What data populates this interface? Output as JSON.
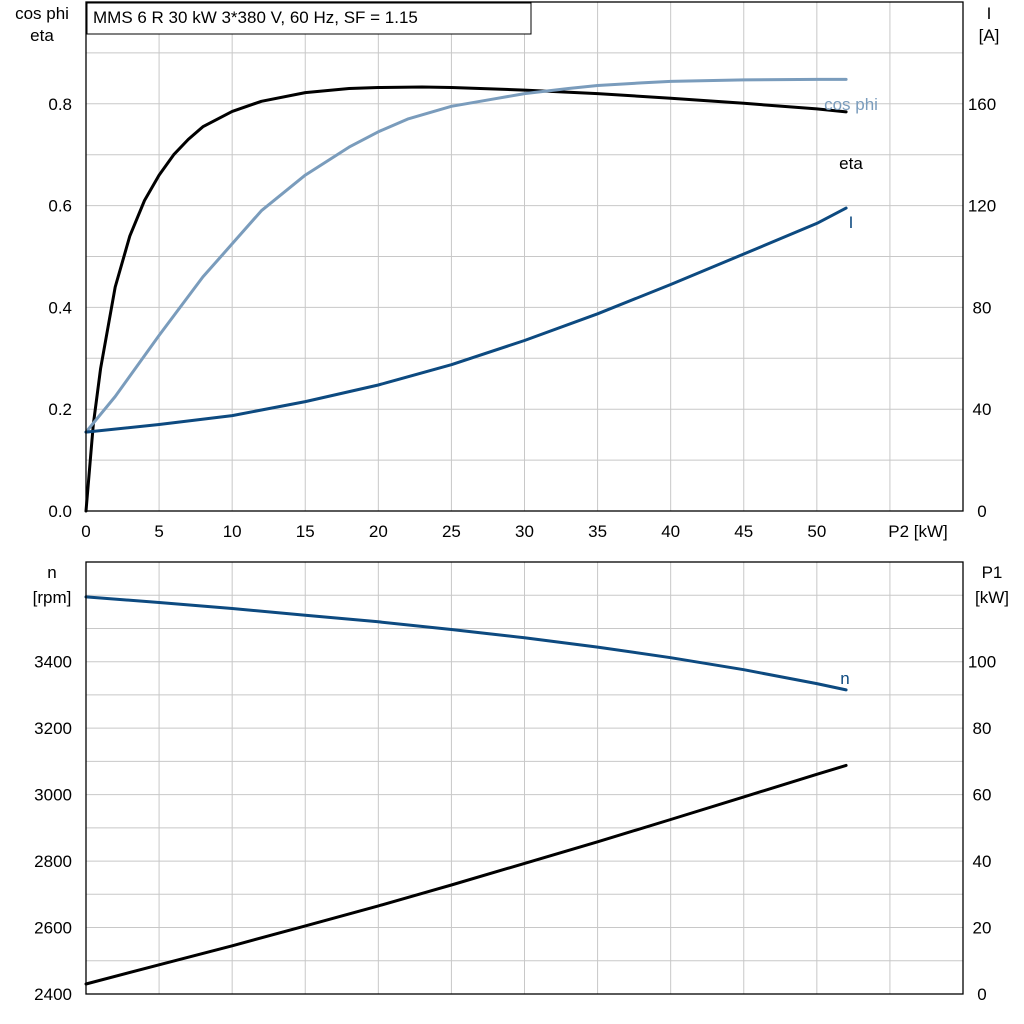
{
  "colors": {
    "eta": "#000000",
    "cosphi": "#7a9cbc",
    "current": "#0d4a80",
    "speed": "#0d4a80",
    "p1": "#000000",
    "grid": "#c8c8c8"
  },
  "title": "MMS 6 R   30 kW   3*380 V, 60 Hz, SF = 1.15",
  "chart_data": [
    {
      "type": "line",
      "x_axis": {
        "label": "P2 [kW]",
        "range": [
          0,
          60
        ],
        "ticks": [
          "0",
          "5",
          "10",
          "15",
          "20",
          "25",
          "30",
          "35",
          "40",
          "45",
          "50"
        ],
        "tick_values": [
          0,
          5,
          10,
          15,
          20,
          25,
          30,
          35,
          40,
          45,
          50
        ]
      },
      "y_left": {
        "label_line1": "cos phi",
        "label_line2": "eta",
        "range": [
          0,
          1.0
        ],
        "ticks": [
          "0.0",
          "0.2",
          "0.4",
          "0.6",
          "0.8"
        ],
        "tick_values": [
          0,
          0.2,
          0.4,
          0.6,
          0.8
        ]
      },
      "y_right": {
        "label_line1": "I",
        "label_line2": "[A]",
        "range": [
          0,
          200
        ],
        "ticks": [
          "0",
          "40",
          "80",
          "120",
          "160"
        ],
        "tick_values": [
          0,
          40,
          80,
          120,
          160
        ]
      },
      "grid": true,
      "series": [
        {
          "name": "eta",
          "axis": "left",
          "color": "#000000",
          "x": [
            0,
            0.5,
            1,
            2,
            3,
            4,
            5,
            6,
            7,
            8,
            10,
            12,
            15,
            18,
            20,
            23,
            25,
            30,
            35,
            40,
            45,
            50,
            52
          ],
          "y": [
            0,
            0.17,
            0.28,
            0.44,
            0.54,
            0.61,
            0.66,
            0.7,
            0.73,
            0.755,
            0.785,
            0.805,
            0.822,
            0.83,
            0.832,
            0.833,
            0.832,
            0.827,
            0.82,
            0.811,
            0.801,
            0.79,
            0.784
          ]
        },
        {
          "name": "cos phi",
          "axis": "left",
          "color": "#7a9cbc",
          "x": [
            0,
            2,
            5,
            8,
            10,
            12,
            15,
            18,
            20,
            22,
            25,
            28,
            30,
            33,
            35,
            38,
            40,
            45,
            50,
            52
          ],
          "y": [
            0.155,
            0.225,
            0.345,
            0.46,
            0.525,
            0.59,
            0.66,
            0.715,
            0.745,
            0.77,
            0.795,
            0.81,
            0.82,
            0.83,
            0.836,
            0.841,
            0.844,
            0.847,
            0.848,
            0.848
          ]
        },
        {
          "name": "I",
          "axis": "right",
          "color": "#0d4a80",
          "x": [
            0,
            5,
            10,
            15,
            20,
            25,
            30,
            35,
            40,
            45,
            50,
            52
          ],
          "y": [
            31,
            34,
            37.5,
            43,
            49.5,
            57.5,
            67,
            77.5,
            89,
            101,
            113,
            119
          ]
        }
      ],
      "labels": [
        {
          "series": "cos phi",
          "text": "cos phi"
        },
        {
          "series": "eta",
          "text": "eta"
        },
        {
          "series": "I",
          "text": "I"
        }
      ]
    },
    {
      "type": "line",
      "x_axis": {
        "range": [
          0,
          60
        ]
      },
      "y_left": {
        "label_line1": "n",
        "label_line2": "[rpm]",
        "range": [
          2400,
          3700
        ],
        "ticks": [
          "2400",
          "2600",
          "2800",
          "3000",
          "3200",
          "3400"
        ],
        "tick_values": [
          2400,
          2600,
          2800,
          3000,
          3200,
          3400
        ]
      },
      "y_right": {
        "label_line1": "P1",
        "label_line2": "[kW]",
        "range": [
          0,
          130
        ],
        "ticks": [
          "0",
          "20",
          "40",
          "60",
          "80",
          "100"
        ],
        "tick_values": [
          0,
          20,
          40,
          60,
          80,
          100
        ]
      },
      "grid": true,
      "series": [
        {
          "name": "n",
          "axis": "left",
          "color": "#0d4a80",
          "x": [
            0,
            5,
            10,
            15,
            20,
            25,
            30,
            35,
            40,
            45,
            50,
            52
          ],
          "y": [
            3595,
            3578,
            3560,
            3540,
            3520,
            3497,
            3472,
            3444,
            3412,
            3376,
            3334,
            3315
          ]
        },
        {
          "name": "P1",
          "axis": "right",
          "color": "#000000",
          "x": [
            0,
            5,
            10,
            15,
            20,
            25,
            30,
            35,
            40,
            45,
            50,
            52
          ],
          "y": [
            3,
            8.8,
            14.5,
            20.5,
            26.5,
            32.8,
            39.3,
            45.8,
            52.5,
            59.3,
            66.1,
            68.8
          ]
        }
      ],
      "labels": [
        {
          "series": "n",
          "text": "n"
        }
      ]
    }
  ]
}
